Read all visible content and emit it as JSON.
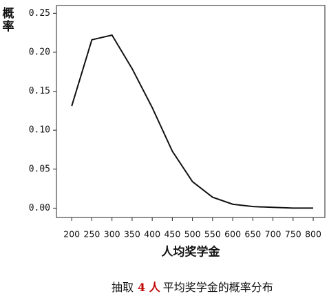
{
  "chart_data": {
    "type": "line",
    "ylabel": "概率",
    "xlabel": "人均奖学金",
    "caption": [
      "抽取",
      "4 人",
      "平均奖学金的概率分布"
    ],
    "x": [
      200,
      250,
      300,
      350,
      400,
      450,
      500,
      550,
      600,
      650,
      700,
      750,
      800
    ],
    "series": [
      {
        "color": "#111111",
        "values": [
          0.131,
          0.216,
          0.222,
          0.179,
          0.129,
          0.073,
          0.034,
          0.014,
          0.005,
          0.002,
          0.001,
          0.0,
          0.0
        ]
      }
    ],
    "xlim": [
      162,
      829
    ],
    "ylim": [
      -0.012,
      0.26
    ],
    "xticks": [
      200,
      250,
      300,
      350,
      400,
      450,
      500,
      550,
      600,
      650,
      700,
      750,
      800
    ],
    "yticks": [
      {
        "value": 0,
        "label": "0.00"
      },
      {
        "value": 0.05,
        "label": "0.05"
      },
      {
        "value": 0.1,
        "label": "0.10"
      },
      {
        "value": 0.15,
        "label": "0.15"
      },
      {
        "value": 0.2,
        "label": "0.20"
      },
      {
        "value": 0.25,
        "label": "0.25"
      }
    ]
  }
}
